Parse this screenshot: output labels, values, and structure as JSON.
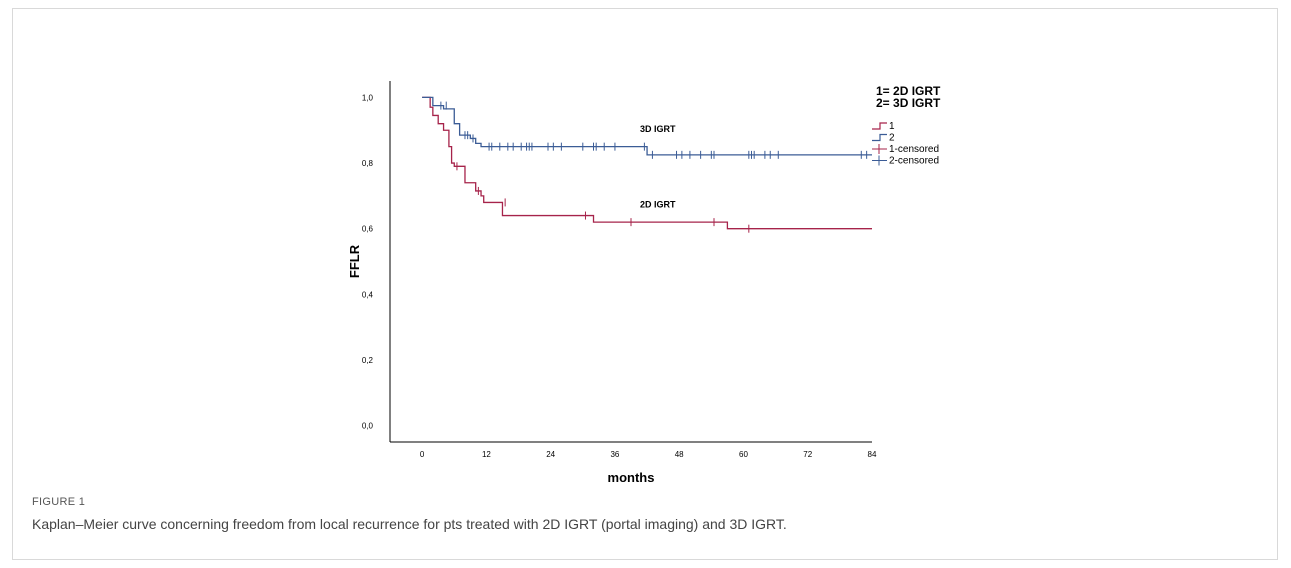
{
  "figure": {
    "label": "FIGURE 1",
    "caption": "Kaplan–Meier curve concerning freedom from local recurrence for pts treated with 2D IGRT (portal imaging) and 3D IGRT."
  },
  "chart_data": {
    "type": "line",
    "title": "",
    "xlabel": "months",
    "ylabel": "FFLR",
    "xlim": [
      -6,
      84
    ],
    "ylim": [
      -0.05,
      1.05
    ],
    "x_ticks": [
      0,
      12,
      24,
      36,
      48,
      60,
      72,
      84
    ],
    "x_tick_labels": [
      "0",
      "12",
      "24",
      "36",
      "48",
      "60",
      "72",
      "84"
    ],
    "y_ticks": [
      0.0,
      0.2,
      0.4,
      0.6,
      0.8,
      1.0
    ],
    "y_tick_labels": [
      "0,0",
      "0,2",
      "0,4",
      "0,6",
      "0,8",
      "1,0"
    ],
    "grid": false,
    "legend": {
      "title_lines": [
        "1= 2D IGRT",
        "2= 3D IGRT"
      ],
      "placement": "top-right",
      "entries": [
        "1",
        "2",
        "1-censored",
        "2-censored"
      ]
    },
    "annotations": [
      {
        "text": "3D IGRT",
        "x": 44,
        "y": 0.895
      },
      {
        "text": "2D IGRT",
        "x": 44,
        "y": 0.665
      }
    ],
    "colors": {
      "series1": "#A6234A",
      "series2": "#3B5C96"
    },
    "series": [
      {
        "name": "1",
        "steps": [
          [
            0,
            1.0
          ],
          [
            1.5,
            0.97
          ],
          [
            2,
            0.945
          ],
          [
            3,
            0.92
          ],
          [
            4,
            0.9
          ],
          [
            5,
            0.85
          ],
          [
            5.5,
            0.8
          ],
          [
            6,
            0.79
          ],
          [
            8,
            0.74
          ],
          [
            10,
            0.715
          ],
          [
            11,
            0.7
          ],
          [
            11.5,
            0.68
          ],
          [
            15,
            0.64
          ],
          [
            32,
            0.62
          ],
          [
            57,
            0.6
          ],
          [
            84,
            0.6
          ]
        ],
        "censored": [
          [
            6.5,
            0.79
          ],
          [
            10.5,
            0.715
          ],
          [
            15.5,
            0.68
          ],
          [
            30.5,
            0.64
          ],
          [
            39,
            0.62
          ],
          [
            54.5,
            0.62
          ],
          [
            61,
            0.6
          ]
        ]
      },
      {
        "name": "2",
        "steps": [
          [
            0,
            1.0
          ],
          [
            2,
            0.975
          ],
          [
            4,
            0.965
          ],
          [
            6,
            0.92
          ],
          [
            7,
            0.885
          ],
          [
            9,
            0.875
          ],
          [
            10,
            0.86
          ],
          [
            11,
            0.85
          ],
          [
            42,
            0.825
          ],
          [
            84,
            0.825
          ]
        ],
        "censored": [
          [
            3.5,
            0.975
          ],
          [
            4.5,
            0.975
          ],
          [
            8,
            0.885
          ],
          [
            8.5,
            0.885
          ],
          [
            9.5,
            0.875
          ],
          [
            12.5,
            0.85
          ],
          [
            13,
            0.85
          ],
          [
            14.5,
            0.85
          ],
          [
            16,
            0.85
          ],
          [
            17,
            0.85
          ],
          [
            18.5,
            0.85
          ],
          [
            19.5,
            0.85
          ],
          [
            20,
            0.85
          ],
          [
            20.5,
            0.85
          ],
          [
            23.5,
            0.85
          ],
          [
            24.5,
            0.85
          ],
          [
            26,
            0.85
          ],
          [
            30,
            0.85
          ],
          [
            32,
            0.85
          ],
          [
            32.5,
            0.85
          ],
          [
            34,
            0.85
          ],
          [
            36,
            0.85
          ],
          [
            41.5,
            0.85
          ],
          [
            43,
            0.825
          ],
          [
            47.5,
            0.825
          ],
          [
            48.5,
            0.825
          ],
          [
            50,
            0.825
          ],
          [
            52,
            0.825
          ],
          [
            54,
            0.825
          ],
          [
            54.5,
            0.825
          ],
          [
            61,
            0.825
          ],
          [
            61.5,
            0.825
          ],
          [
            62,
            0.825
          ],
          [
            64,
            0.825
          ],
          [
            65,
            0.825
          ],
          [
            66.5,
            0.825
          ],
          [
            82,
            0.825
          ],
          [
            83,
            0.825
          ]
        ]
      }
    ]
  }
}
